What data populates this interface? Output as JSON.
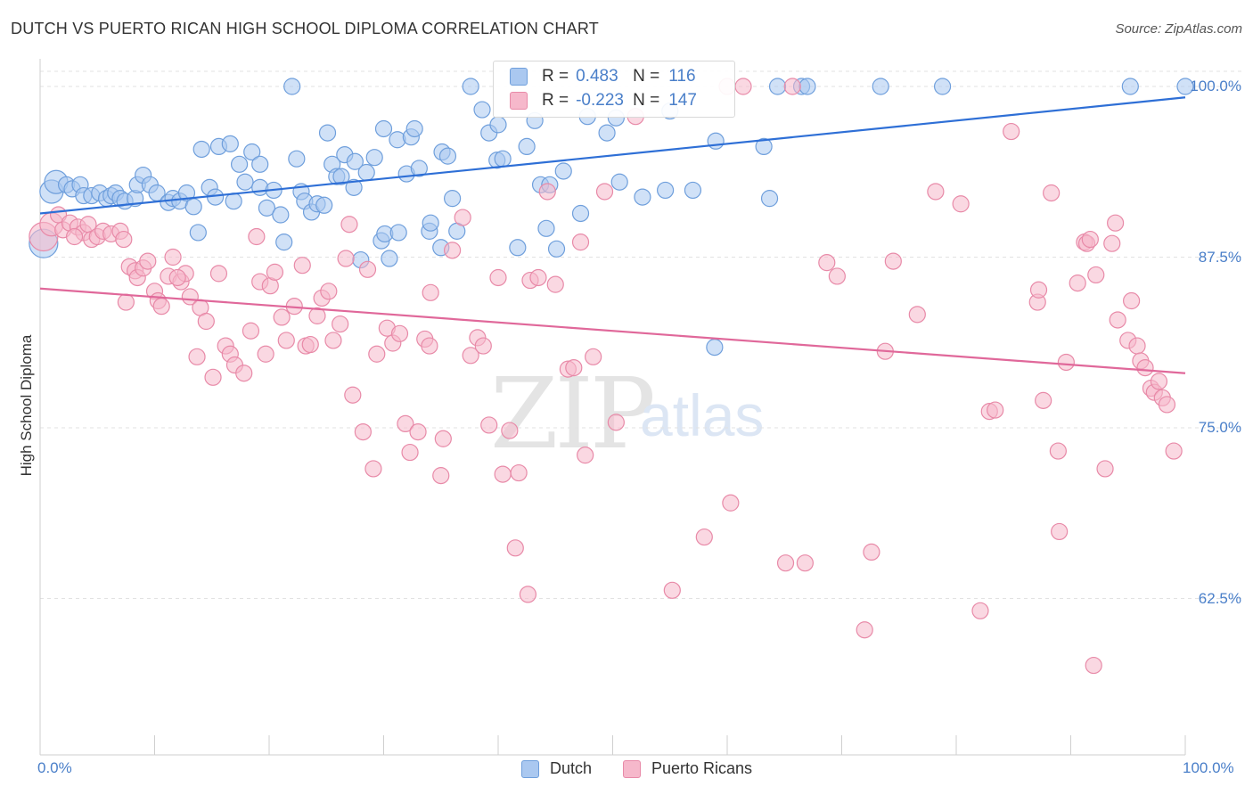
{
  "header": {
    "title": "DUTCH VS PUERTO RICAN HIGH SCHOOL DIPLOMA CORRELATION CHART",
    "source": "Source: ZipAtlas.com"
  },
  "watermark": {
    "zip": "ZIP",
    "atlas": "atlas"
  },
  "legend": {
    "rows": [
      {
        "r_label": "R =",
        "r_value": "0.483",
        "n_label": "N =",
        "n_value": "116",
        "color": "#aac8f0"
      },
      {
        "r_label": "R =",
        "r_value": "-0.223",
        "n_label": "N =",
        "n_value": "147",
        "color": "#f6b8cb"
      }
    ]
  },
  "bottom_legend": {
    "dutch": "Dutch",
    "pr": "Puerto Ricans"
  },
  "chart_data": {
    "type": "scatter",
    "title": "DUTCH VS PUERTO RICAN HIGH SCHOOL DIPLOMA CORRELATION CHART",
    "xlabel": "",
    "ylabel": "High School Diploma",
    "xlim": [
      0,
      100
    ],
    "ylim": [
      52,
      100.5
    ],
    "x_tick_labels": [
      "0.0%",
      "100.0%"
    ],
    "y_ticks": [
      {
        "value": 100,
        "label": "100.0%"
      },
      {
        "value": 87.5,
        "label": "87.5%"
      },
      {
        "value": 75,
        "label": "75.0%"
      },
      {
        "value": 62.5,
        "label": "62.5%"
      }
    ],
    "grid": true,
    "legend_position": "top-center",
    "series": [
      {
        "name": "Dutch",
        "color": "#6f9fdc",
        "fill": "#aac8f0",
        "r": 0.483,
        "n": 116,
        "trend": {
          "x": [
            0,
            100
          ],
          "y": [
            90.7,
            99.2
          ]
        },
        "points": [
          [
            0.3,
            88.5,
            "L"
          ],
          [
            1.0,
            92.3,
            "M"
          ],
          [
            1.4,
            93.0,
            "M"
          ],
          [
            2.3,
            92.8
          ],
          [
            2.8,
            92.5
          ],
          [
            3.5,
            92.8
          ],
          [
            3.8,
            92.0
          ],
          [
            4.5,
            92.0
          ],
          [
            5.2,
            92.2
          ],
          [
            5.8,
            91.8
          ],
          [
            6.2,
            92.0
          ],
          [
            6.6,
            92.2
          ],
          [
            7.0,
            91.8
          ],
          [
            7.4,
            91.6
          ],
          [
            8.3,
            91.8
          ],
          [
            8.5,
            92.8
          ],
          [
            9.0,
            93.5
          ],
          [
            9.6,
            92.8
          ],
          [
            10.2,
            92.2
          ],
          [
            11.2,
            91.5
          ],
          [
            11.6,
            91.8
          ],
          [
            12.2,
            91.6
          ],
          [
            12.8,
            92.2
          ],
          [
            13.4,
            91.2
          ],
          [
            13.8,
            89.3
          ],
          [
            14.1,
            95.4
          ],
          [
            14.8,
            92.6
          ],
          [
            15.6,
            95.6
          ],
          [
            15.3,
            91.9
          ],
          [
            16.6,
            95.8
          ],
          [
            16.9,
            91.6
          ],
          [
            17.4,
            94.3
          ],
          [
            17.9,
            93.0
          ],
          [
            18.5,
            95.2
          ],
          [
            19.2,
            94.3
          ],
          [
            19.2,
            92.6
          ],
          [
            19.8,
            91.1
          ],
          [
            20.4,
            92.4
          ],
          [
            21.0,
            90.6
          ],
          [
            21.3,
            88.6
          ],
          [
            22.4,
            94.7
          ],
          [
            22.8,
            92.3
          ],
          [
            23.1,
            91.6
          ],
          [
            23.7,
            90.8
          ],
          [
            24.2,
            91.4
          ],
          [
            24.8,
            91.3
          ],
          [
            25.1,
            96.6
          ],
          [
            25.5,
            94.3
          ],
          [
            25.9,
            93.4
          ],
          [
            26.3,
            93.4
          ],
          [
            26.6,
            95.0
          ],
          [
            27.4,
            92.6
          ],
          [
            27.5,
            94.5
          ],
          [
            28.0,
            87.3
          ],
          [
            28.5,
            93.7
          ],
          [
            29.2,
            94.8
          ],
          [
            29.8,
            88.7
          ],
          [
            30.1,
            89.2
          ],
          [
            30.5,
            87.4
          ],
          [
            31.3,
            89.3
          ],
          [
            31.2,
            96.1
          ],
          [
            32.0,
            93.6
          ],
          [
            32.4,
            96.3
          ],
          [
            32.7,
            96.9
          ],
          [
            33.1,
            94.0
          ],
          [
            34.0,
            89.4
          ],
          [
            34.1,
            90.0
          ],
          [
            35.0,
            88.2
          ],
          [
            35.1,
            95.2
          ],
          [
            35.6,
            94.9
          ],
          [
            36.0,
            91.8
          ],
          [
            36.4,
            89.4
          ],
          [
            37.6,
            100.0
          ],
          [
            38.6,
            98.3
          ],
          [
            39.2,
            96.6
          ],
          [
            40.0,
            97.2
          ],
          [
            39.9,
            94.6
          ],
          [
            40.4,
            94.7
          ],
          [
            41.7,
            88.2
          ],
          [
            42.5,
            95.6
          ],
          [
            43.2,
            97.5
          ],
          [
            43.7,
            92.8
          ],
          [
            44.2,
            89.6
          ],
          [
            44.5,
            92.8
          ],
          [
            45.1,
            88.1
          ],
          [
            45.7,
            93.8
          ],
          [
            47.2,
            90.7
          ],
          [
            47.8,
            97.8
          ],
          [
            49.5,
            96.6
          ],
          [
            50.3,
            97.7
          ],
          [
            50.6,
            93.0
          ],
          [
            52.6,
            91.9
          ],
          [
            54.6,
            92.4
          ],
          [
            57.0,
            92.4
          ],
          [
            58.9,
            80.9
          ],
          [
            63.2,
            95.6
          ],
          [
            63.7,
            91.8
          ],
          [
            64.4,
            100.0
          ],
          [
            66.5,
            100.0
          ],
          [
            67.0,
            100.0
          ],
          [
            73.4,
            100.0
          ],
          [
            78.8,
            100.0
          ],
          [
            95.2,
            100.0
          ],
          [
            100.0,
            100.0
          ],
          [
            59.0,
            96.0
          ],
          [
            22.0,
            100.0
          ],
          [
            55.0,
            98.2
          ],
          [
            30.0,
            96.9
          ]
        ]
      },
      {
        "name": "Puerto Ricans",
        "color": "#e88aa8",
        "fill": "#f6b8cb",
        "r": -0.223,
        "n": 147,
        "trend": {
          "x": [
            0,
            100
          ],
          "y": [
            85.2,
            79.0
          ]
        },
        "points": [
          [
            0.3,
            89.0,
            "L"
          ],
          [
            1.0,
            89.9,
            "M"
          ],
          [
            1.6,
            90.6
          ],
          [
            2.0,
            89.5
          ],
          [
            2.6,
            90.0
          ],
          [
            3.3,
            89.7
          ],
          [
            3.8,
            89.3
          ],
          [
            4.2,
            89.9
          ],
          [
            4.5,
            88.8
          ],
          [
            5.0,
            89.0
          ],
          [
            5.5,
            89.4
          ],
          [
            6.2,
            89.2
          ],
          [
            7.0,
            89.4
          ],
          [
            7.3,
            88.8
          ],
          [
            7.5,
            84.2
          ],
          [
            7.8,
            86.8
          ],
          [
            8.3,
            86.5
          ],
          [
            8.5,
            86.0
          ],
          [
            9.0,
            86.7
          ],
          [
            9.4,
            87.2
          ],
          [
            10.0,
            85.0
          ],
          [
            10.3,
            84.3
          ],
          [
            10.6,
            83.9
          ],
          [
            11.2,
            86.1
          ],
          [
            11.6,
            87.5
          ],
          [
            12.3,
            85.7
          ],
          [
            12.7,
            86.3
          ],
          [
            13.1,
            84.6
          ],
          [
            13.7,
            80.2
          ],
          [
            14.0,
            83.8
          ],
          [
            14.5,
            82.8
          ],
          [
            15.1,
            78.7
          ],
          [
            15.6,
            86.3
          ],
          [
            16.2,
            81.0
          ],
          [
            16.6,
            80.4
          ],
          [
            17.0,
            79.6
          ],
          [
            17.8,
            79.0
          ],
          [
            18.4,
            82.1
          ],
          [
            18.9,
            89.0
          ],
          [
            19.2,
            85.7
          ],
          [
            19.7,
            80.4
          ],
          [
            20.1,
            85.4
          ],
          [
            20.5,
            86.4
          ],
          [
            21.1,
            83.1
          ],
          [
            21.5,
            81.4
          ],
          [
            22.2,
            83.9
          ],
          [
            22.9,
            86.9
          ],
          [
            23.2,
            81.0
          ],
          [
            23.6,
            81.1
          ],
          [
            24.2,
            83.2
          ],
          [
            24.6,
            84.5
          ],
          [
            25.2,
            85.0
          ],
          [
            25.6,
            81.4
          ],
          [
            26.2,
            82.6
          ],
          [
            26.7,
            87.4
          ],
          [
            27.0,
            89.9
          ],
          [
            27.3,
            77.4
          ],
          [
            28.2,
            74.7
          ],
          [
            28.6,
            86.6
          ],
          [
            29.1,
            72.0
          ],
          [
            29.4,
            80.4
          ],
          [
            30.3,
            82.3
          ],
          [
            30.8,
            81.2
          ],
          [
            31.4,
            81.9
          ],
          [
            31.9,
            75.3
          ],
          [
            32.3,
            73.2
          ],
          [
            33.0,
            74.7
          ],
          [
            33.6,
            81.5
          ],
          [
            34.1,
            84.9
          ],
          [
            35.0,
            71.5
          ],
          [
            35.2,
            74.2
          ],
          [
            36.0,
            88.0
          ],
          [
            36.9,
            90.4
          ],
          [
            37.6,
            80.3
          ],
          [
            38.2,
            81.6
          ],
          [
            38.7,
            81.0
          ],
          [
            39.2,
            75.2
          ],
          [
            40.0,
            86.0
          ],
          [
            40.4,
            71.6
          ],
          [
            41.0,
            74.8
          ],
          [
            41.5,
            66.2
          ],
          [
            41.8,
            71.7
          ],
          [
            42.6,
            62.8
          ],
          [
            42.8,
            85.8
          ],
          [
            43.5,
            86.0
          ],
          [
            44.3,
            92.3
          ],
          [
            46.1,
            79.3
          ],
          [
            46.6,
            79.4
          ],
          [
            47.2,
            88.6
          ],
          [
            47.6,
            73.0
          ],
          [
            48.3,
            80.2
          ],
          [
            49.3,
            92.3
          ],
          [
            50.3,
            75.4
          ],
          [
            52.0,
            97.8
          ],
          [
            55.2,
            63.1
          ],
          [
            58.0,
            67.0
          ],
          [
            60.3,
            69.5
          ],
          [
            61.4,
            100.0
          ],
          [
            65.7,
            100.0
          ],
          [
            65.1,
            65.1
          ],
          [
            66.8,
            65.1
          ],
          [
            68.7,
            87.1
          ],
          [
            69.6,
            86.1
          ],
          [
            72.0,
            60.2
          ],
          [
            72.6,
            65.9
          ],
          [
            73.8,
            80.6
          ],
          [
            74.5,
            87.2
          ],
          [
            76.6,
            83.3
          ],
          [
            78.2,
            92.3
          ],
          [
            80.4,
            91.4
          ],
          [
            82.1,
            61.6
          ],
          [
            82.9,
            76.2
          ],
          [
            83.4,
            76.3
          ],
          [
            84.8,
            96.7
          ],
          [
            87.1,
            84.2
          ],
          [
            87.2,
            85.1
          ],
          [
            87.6,
            77.0
          ],
          [
            88.3,
            92.2
          ],
          [
            88.9,
            73.3
          ],
          [
            89.0,
            67.4
          ],
          [
            89.6,
            79.8
          ],
          [
            90.6,
            85.6
          ],
          [
            91.2,
            88.6
          ],
          [
            91.4,
            88.5
          ],
          [
            91.7,
            88.8
          ],
          [
            92.0,
            57.6
          ],
          [
            92.2,
            86.2
          ],
          [
            93.0,
            72.0
          ],
          [
            93.6,
            88.5
          ],
          [
            93.9,
            90.0
          ],
          [
            94.1,
            82.9
          ],
          [
            95.0,
            81.4
          ],
          [
            95.3,
            84.3
          ],
          [
            95.8,
            81.0
          ],
          [
            96.1,
            79.9
          ],
          [
            96.5,
            79.4
          ],
          [
            97.0,
            77.9
          ],
          [
            97.3,
            77.6
          ],
          [
            97.7,
            78.4
          ],
          [
            98.0,
            77.2
          ],
          [
            98.4,
            76.7
          ],
          [
            99.0,
            73.3
          ],
          [
            3.0,
            89.0
          ],
          [
            12.0,
            86.0
          ],
          [
            34.0,
            81.0
          ],
          [
            45.0,
            85.5
          ],
          [
            60.0,
            100.0
          ]
        ]
      }
    ]
  }
}
